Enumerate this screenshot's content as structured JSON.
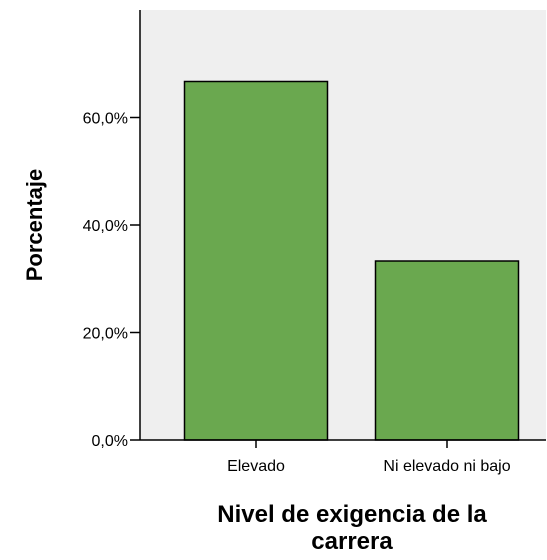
{
  "chart_data": {
    "type": "bar",
    "categories": [
      "Elevado",
      "Ni elevado ni bajo"
    ],
    "values": [
      66.7,
      33.3
    ],
    "ylabel": "Porcentaje",
    "xlabel_lines": [
      "Nivel de exigencia de la",
      "carrera"
    ],
    "ylim": [
      0,
      80
    ],
    "yticks": [
      0,
      20,
      40,
      60
    ],
    "ytick_labels": [
      "0,0%",
      "20,0%",
      "40,0%",
      "60,0%"
    ],
    "grid": false,
    "legend": "none",
    "colors": {
      "plot_background": "#efefef",
      "bar_fill": "#6aa84f",
      "bar_stroke": "#000000",
      "axis": "#000000",
      "text": "#000000"
    }
  }
}
